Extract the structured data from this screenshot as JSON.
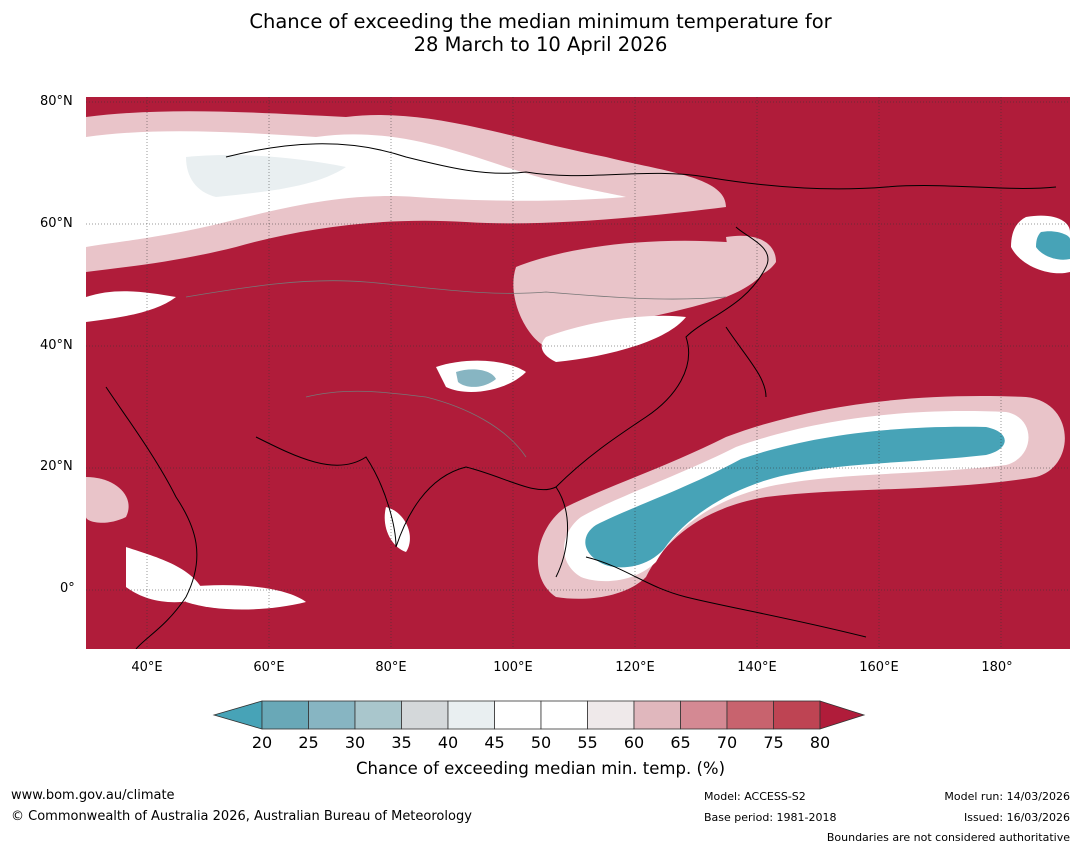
{
  "title_line1": "Chance of exceeding the median minimum temperature for",
  "title_line2": "28 March to 10 April 2026",
  "lat_labels": [
    "80°N",
    "60°N",
    "40°N",
    "20°N",
    "0°"
  ],
  "lon_labels": [
    "40°E",
    "60°E",
    "80°E",
    "100°E",
    "120°E",
    "140°E",
    "160°E",
    "180°"
  ],
  "colorbar": {
    "ticks": [
      "20",
      "25",
      "30",
      "35",
      "40",
      "45",
      "50",
      "55",
      "60",
      "65",
      "70",
      "75",
      "80"
    ],
    "colors": [
      "#69a8b7",
      "#87b5c2",
      "#a9c6cc",
      "#d4d8da",
      "#e9eff1",
      "#ffffff",
      "#ffffff",
      "#efe9ea",
      "#e0b7bd",
      "#d48993",
      "#c8636e",
      "#be4453"
    ],
    "low_color": "#47a3b7",
    "high_color": "#b01c3a",
    "title": "Chance of exceeding median min. temp. (%)"
  },
  "map_colors": {
    "high": "#b01c3a",
    "mid_high": "#d48993",
    "light": "#e9c4c9",
    "neutral": "#ffffff",
    "low": "#47a3b7"
  },
  "footer": {
    "website": "www.bom.gov.au/climate",
    "copyright": "© Commonwealth of Australia 2026, Australian Bureau of Meteorology",
    "model": "Model: ACCESS-S2",
    "base_period": "Base period: 1981-2018",
    "model_run": "Model run: 14/03/2026",
    "issued": "Issued: 16/03/2026",
    "disclaimer": "Boundaries are not considered authoritative"
  }
}
